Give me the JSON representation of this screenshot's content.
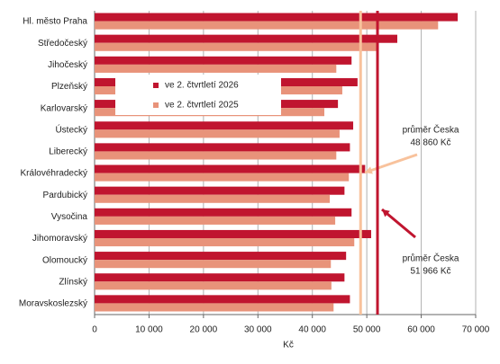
{
  "chart_data": {
    "type": "hbar",
    "categories": [
      "Hl. město Praha",
      "Středočeský",
      "Jihočeský",
      "Plzeňský",
      "Karlovarský",
      "Ústecký",
      "Liberecký",
      "Královéhradecký",
      "Pardubický",
      "Vysočina",
      "Jihomoravský",
      "Olomoucký",
      "Zlínský",
      "Moravskoslezský"
    ],
    "series": [
      {
        "name": "ve  2. čtvrtletí 2026",
        "color": "#c0152f",
        "values": [
          66700,
          55600,
          47200,
          48300,
          44700,
          47500,
          46900,
          49700,
          45900,
          47200,
          50800,
          46200,
          45900,
          46900
        ]
      },
      {
        "name": "ve  2. čtvrtletí 2025",
        "color": "#e8937a",
        "values": [
          63100,
          52200,
          44400,
          45500,
          42200,
          45000,
          44400,
          46700,
          43200,
          44200,
          47700,
          43400,
          43500,
          43900
        ]
      }
    ],
    "xlim": [
      0,
      70000
    ],
    "xticks": [
      0,
      {
        "value": 10000,
        "label": "10 000"
      },
      {
        "value": 20000,
        "label": "20 000"
      },
      {
        "value": 30000,
        "label": "30 000"
      },
      {
        "value": 40000,
        "label": "40 000"
      },
      {
        "value": 50000,
        "label": "50 000"
      },
      {
        "value": 60000,
        "label": "60 000"
      },
      {
        "value": 70000,
        "label": "70 000"
      }
    ],
    "xlabel": "Kč",
    "grid": true,
    "reference_lines": [
      {
        "text": "průměr Česka",
        "value": 48860,
        "value_label": "48 860 Kč",
        "color": "#f8c29c"
      },
      {
        "text": "průměr Česka",
        "value": 51966,
        "value_label": "51 966 Kč",
        "color": "#c0152f"
      }
    ]
  }
}
